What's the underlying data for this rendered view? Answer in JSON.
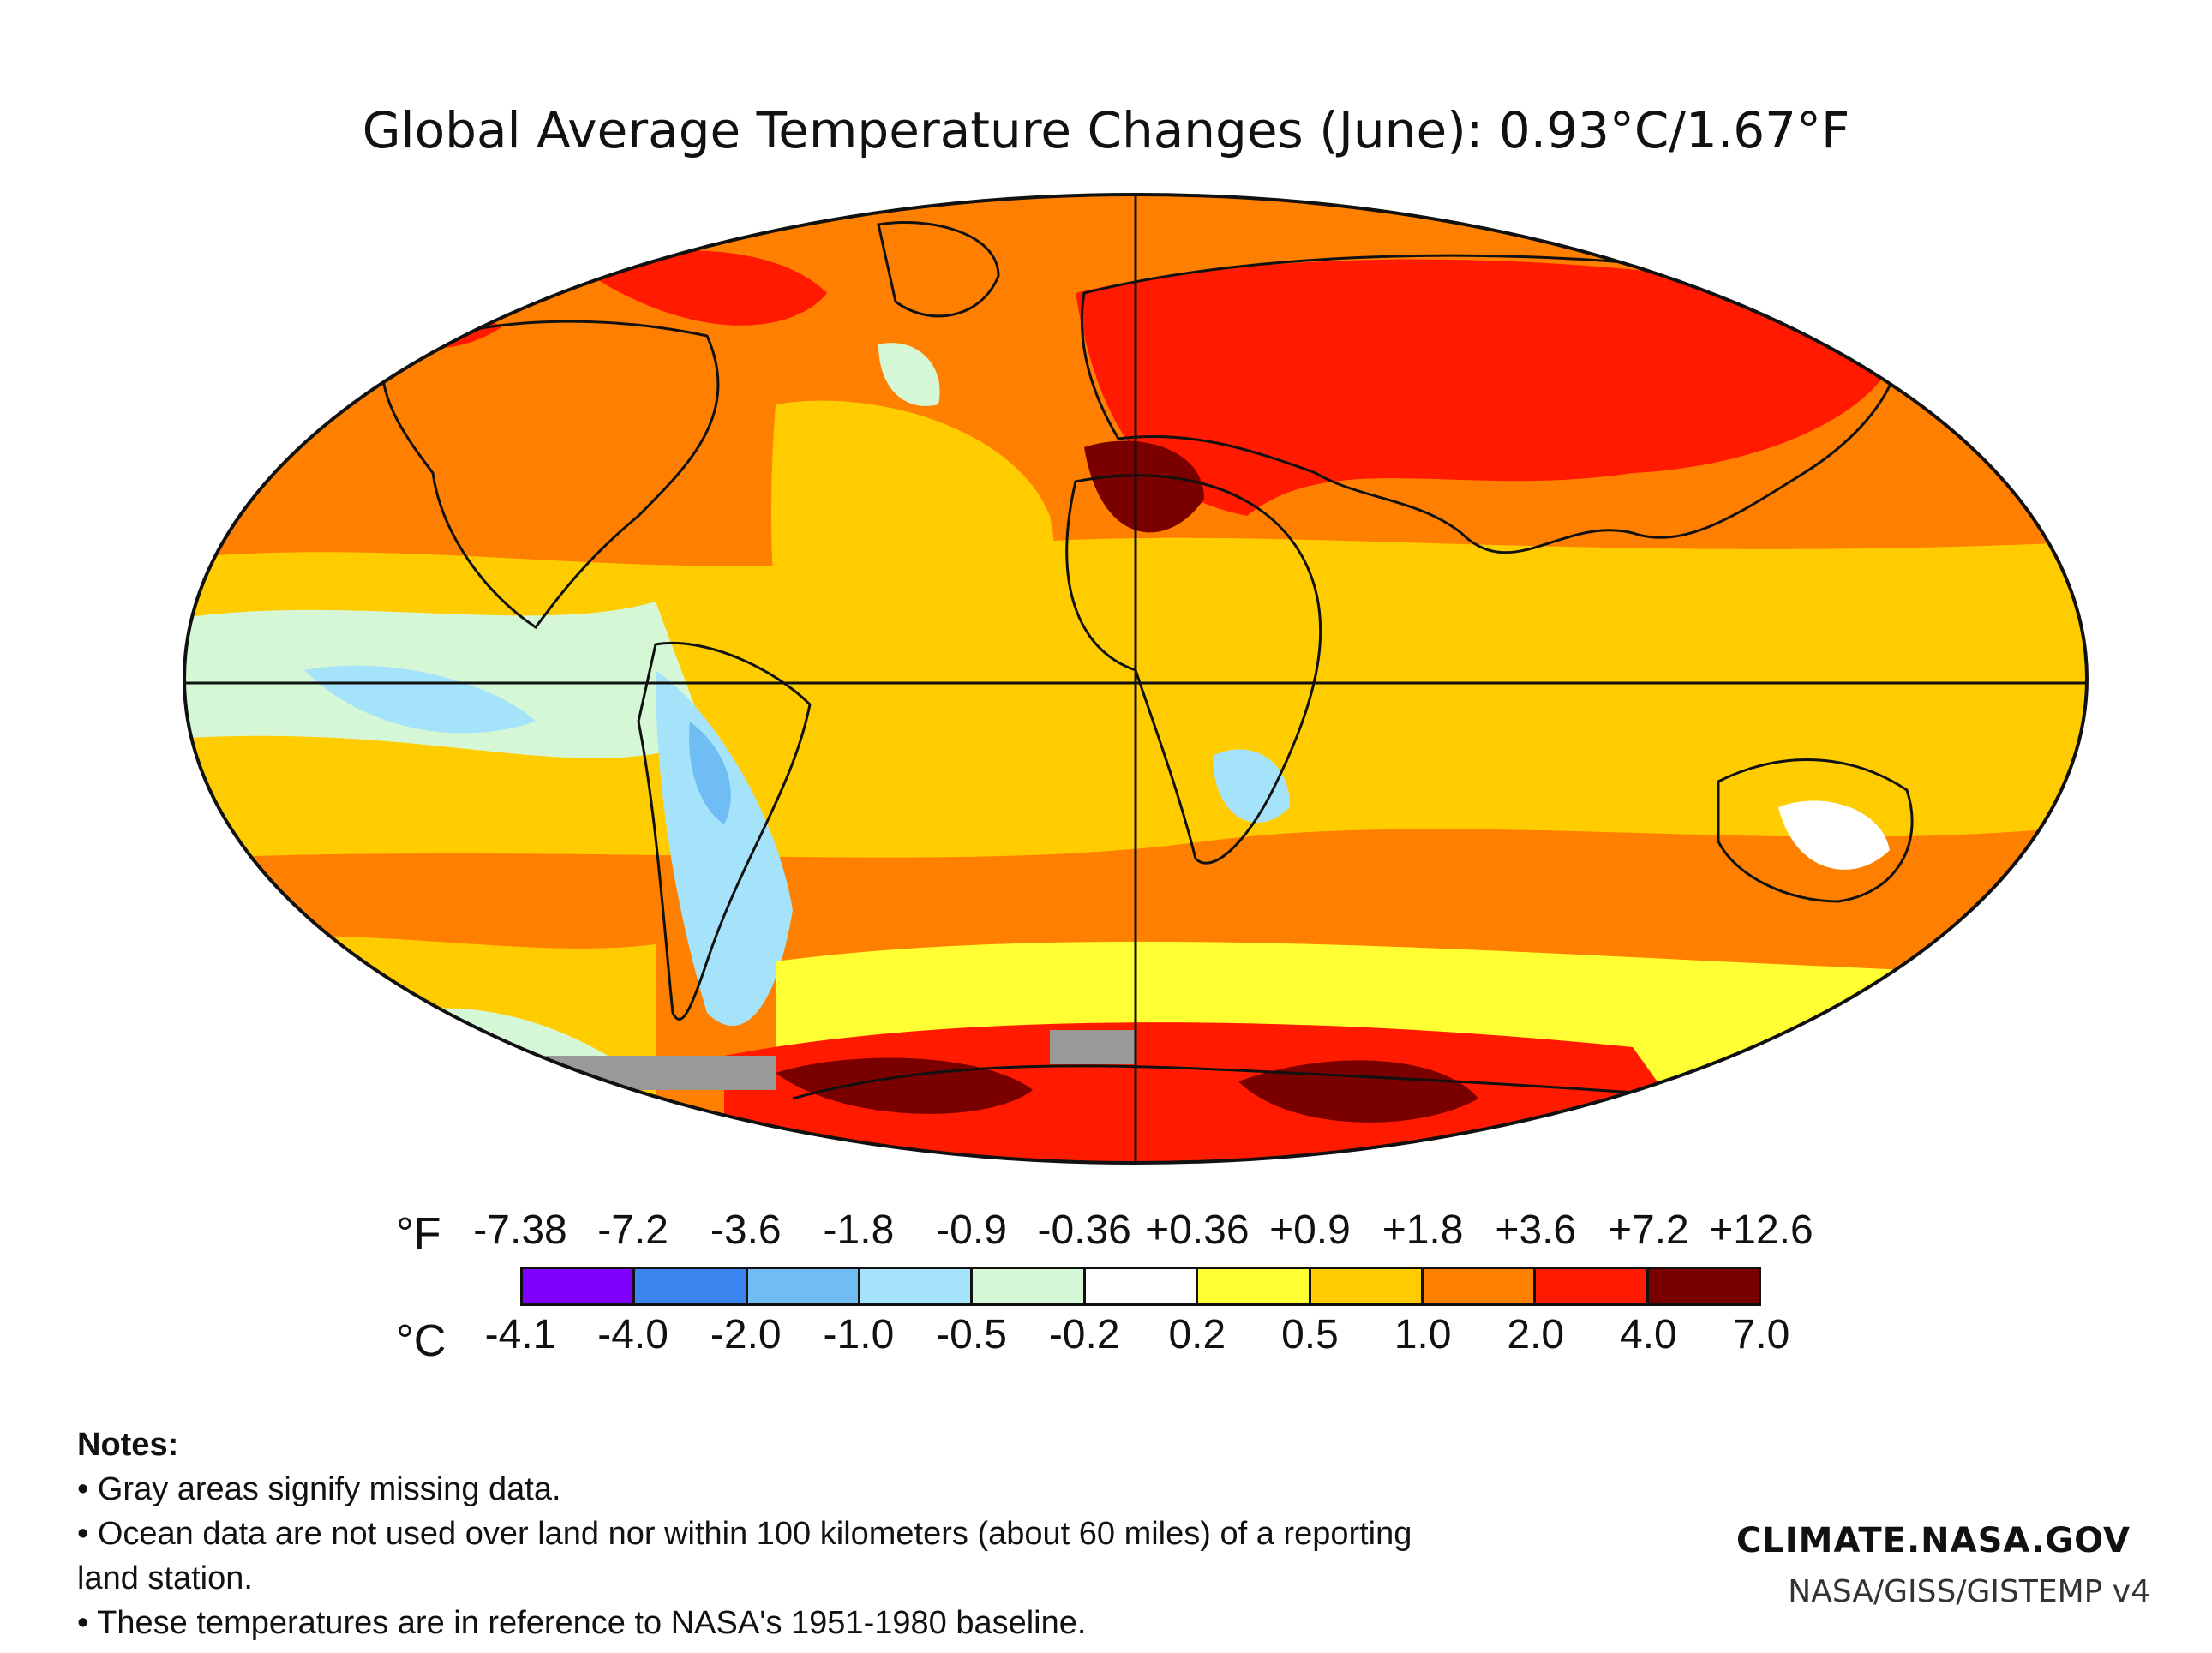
{
  "title": "Global Average Temperature Changes (June): 0.93°C/1.67°F",
  "colors": {
    "c1": "#8000ff",
    "c2": "#3a85f0",
    "c3": "#70bdf5",
    "c4": "#a5e3fb",
    "c5": "#d6f7d5",
    "c6": "#ffffff",
    "c7": "#ffff33",
    "c8": "#ffcc00",
    "c9": "#ff8000",
    "c10": "#ff1a00",
    "c11": "#7a0000",
    "missing": "#999999"
  },
  "legend": {
    "fahrenheit_unit": "°F",
    "celsius_unit": "°C",
    "fahrenheit_ticks": [
      "-7.38",
      "-7.2",
      "-3.6",
      "-1.8",
      "-0.9",
      "-0.36",
      "+0.36",
      "+0.9",
      "+1.8",
      "+3.6",
      "+7.2",
      "+12.6"
    ],
    "celsius_ticks": [
      "-4.1",
      "-4.0",
      "-2.0",
      "-1.0",
      "-0.5",
      "-0.2",
      "0.2",
      "0.5",
      "1.0",
      "2.0",
      "4.0",
      "7.0"
    ]
  },
  "notes": {
    "heading": "Notes:",
    "line1": "• Gray areas signify missing data.",
    "line2": "• Ocean data are not used over land nor within 100 kilometers (about 60 miles) of a reporting land station.",
    "line3": "• These temperatures are in reference to NASA's 1951-1980 baseline."
  },
  "credits": {
    "site": "CLIMATE.NASA.GOV",
    "source": "NASA/GISS/GISTEMP v4"
  }
}
